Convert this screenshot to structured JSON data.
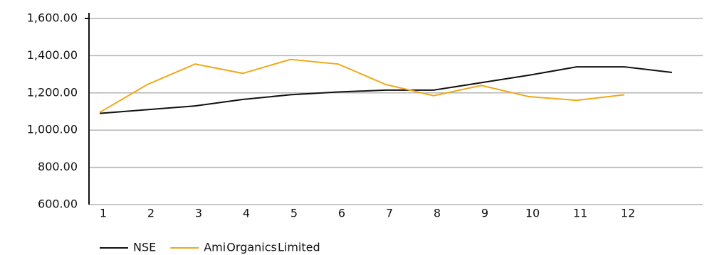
{
  "chart_data": {
    "type": "line",
    "categories": [
      "1",
      "2",
      "3",
      "4",
      "5",
      "6",
      "7",
      "8",
      "9",
      "10",
      "11",
      "12",
      null
    ],
    "series": [
      {
        "name": "NSE",
        "color": "#111111",
        "values": [
          1090,
          1110,
          1130,
          1165,
          1190,
          1205,
          1215,
          1215,
          1255,
          1295,
          1340,
          1340,
          1310
        ]
      },
      {
        "name": "Ami Organics Limited",
        "color": "#f0a818",
        "values": [
          1095,
          1245,
          1355,
          1305,
          1380,
          1355,
          1245,
          1185,
          1240,
          1180,
          1160,
          1190,
          null
        ]
      }
    ],
    "ylim": [
      600,
      1600
    ],
    "yticks": [
      {
        "value": 600,
        "label": "600.00"
      },
      {
        "value": 800,
        "label": "800.00"
      },
      {
        "value": 1000,
        "label": "1,000.00"
      },
      {
        "value": 1200,
        "label": "1,200.00"
      },
      {
        "value": 1400,
        "label": "1,400.00"
      },
      {
        "value": 1600,
        "label": "1,600.00"
      }
    ],
    "grid": true,
    "legend": "bottom"
  }
}
